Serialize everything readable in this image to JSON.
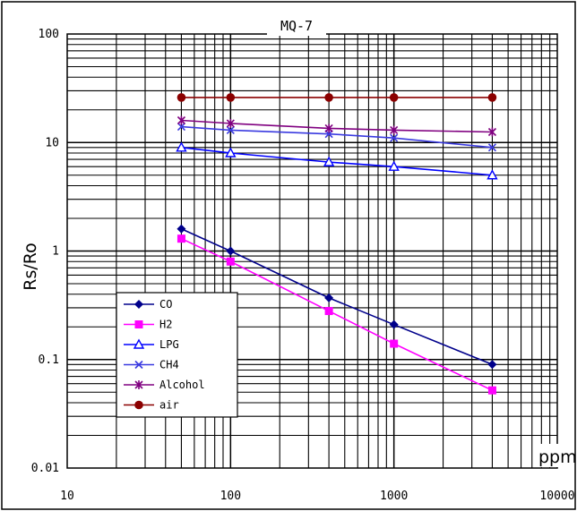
{
  "chart_data": {
    "type": "line",
    "title": "MQ-7",
    "xlabel": "ppm",
    "ylabel": "Rs/Ro",
    "x_scale": "log",
    "y_scale": "log",
    "xlim": [
      10,
      10000
    ],
    "ylim": [
      0.01,
      100
    ],
    "x_tick_labels": [
      "10",
      "100",
      "1000",
      "10000"
    ],
    "y_tick_labels": [
      "0.01",
      "0.1",
      "1",
      "10",
      "100"
    ],
    "grid": true,
    "legend_position": "bottom-left",
    "series": [
      {
        "name": "CO",
        "color": "#00008b",
        "marker": "diamond",
        "x": [
          50,
          100,
          400,
          1000,
          4000
        ],
        "y": [
          1.6,
          1.0,
          0.37,
          0.21,
          0.09
        ]
      },
      {
        "name": "H2",
        "color": "#ff00ff",
        "marker": "square",
        "x": [
          50,
          100,
          400,
          1000,
          4000
        ],
        "y": [
          1.3,
          0.8,
          0.28,
          0.14,
          0.052
        ]
      },
      {
        "name": "LPG",
        "color": "#0000ff",
        "marker": "triangle",
        "x": [
          50,
          100,
          400,
          1000,
          4000
        ],
        "y": [
          9.0,
          8.0,
          6.6,
          6.0,
          5.0
        ]
      },
      {
        "name": "CH4",
        "color": "#3a3ae0",
        "marker": "x",
        "x": [
          50,
          100,
          400,
          1000,
          4000
        ],
        "y": [
          14,
          13,
          12,
          11,
          9
        ]
      },
      {
        "name": "Alcohol",
        "color": "#800080",
        "marker": "star",
        "x": [
          50,
          100,
          400,
          1000,
          4000
        ],
        "y": [
          16,
          15,
          13.5,
          13,
          12.5
        ]
      },
      {
        "name": "air",
        "color": "#8b0000",
        "marker": "circle",
        "x": [
          50,
          100,
          400,
          1000,
          4000
        ],
        "y": [
          26,
          26,
          26,
          26,
          26
        ]
      }
    ]
  }
}
